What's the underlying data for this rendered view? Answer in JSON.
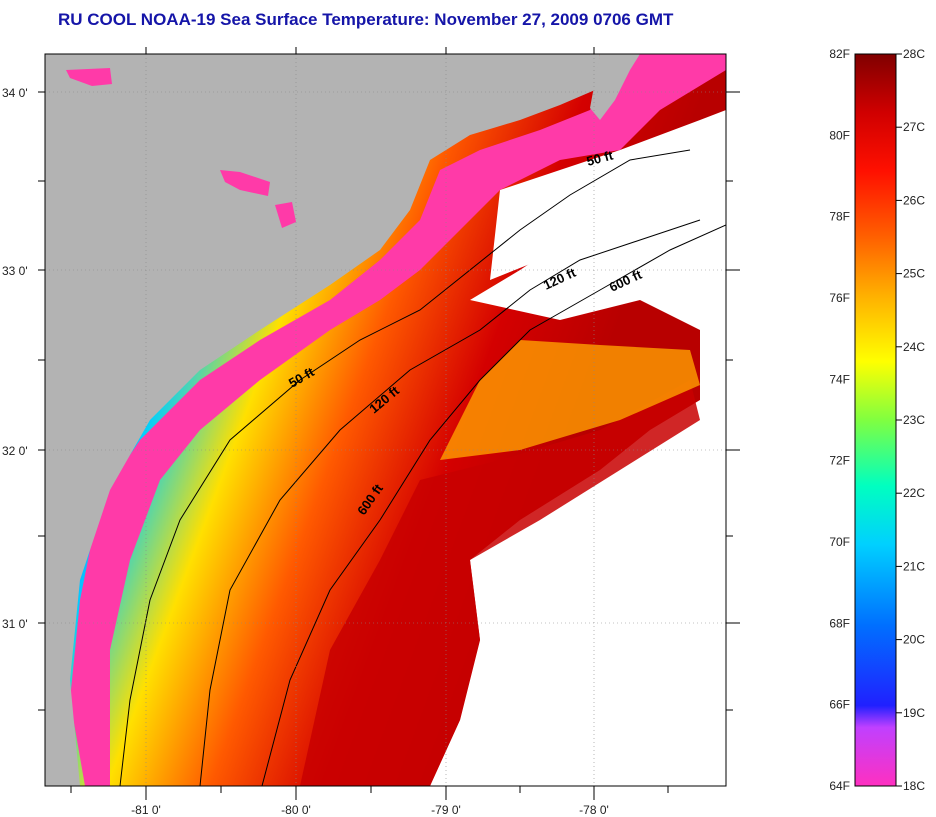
{
  "title": "RU COOL  NOAA-19  Sea Surface Temperature:  November 27, 2009 0706 GMT",
  "map": {
    "lat_labels": [
      "34 0'",
      "33 0'",
      "32 0'",
      "31 0'"
    ],
    "lon_labels": [
      "-81 0'",
      "-80 0'",
      "-79 0'",
      "-78 0'"
    ],
    "contour_labels": [
      "50 ft",
      "120 ft",
      "600 ft",
      "50 ft",
      "120 ft",
      "600 ft"
    ],
    "colors": {
      "land": "#b3b3b3",
      "no_data": "#ffffff",
      "nearshore": "#ff3aa8"
    }
  },
  "legend": {
    "fahrenheit_labels": [
      "82F",
      "80F",
      "78F",
      "76F",
      "74F",
      "72F",
      "70F",
      "68F",
      "66F",
      "64F"
    ],
    "celsius_labels": [
      "28C",
      "27C",
      "26C",
      "25C",
      "24C",
      "23C",
      "22C",
      "21C",
      "20C",
      "19C",
      "18C"
    ],
    "colors": [
      "#ff30c0",
      "#c040ff",
      "#2020ff",
      "#0070ff",
      "#00c8ff",
      "#00ffd0",
      "#60ff60",
      "#ffff00",
      "#ffb000",
      "#ff6000",
      "#ff1000",
      "#d00000",
      "#800000"
    ]
  }
}
